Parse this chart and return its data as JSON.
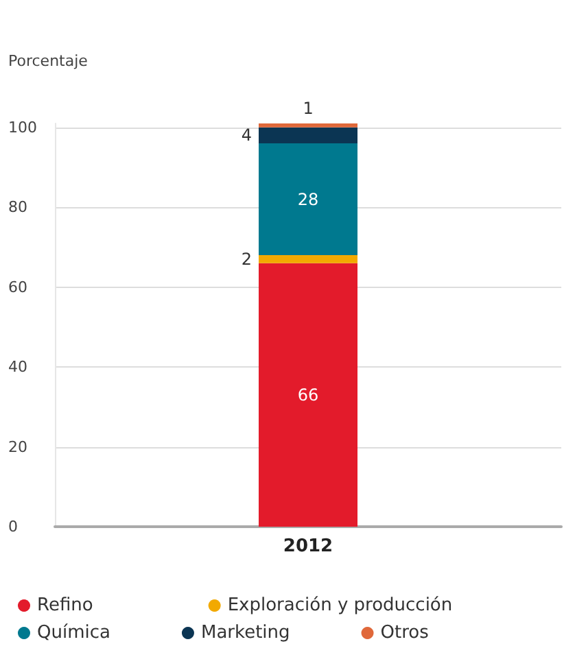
{
  "chart_data": {
    "type": "bar",
    "stacked": true,
    "ylabel": "Porcentaje",
    "categories": [
      "2012"
    ],
    "series": [
      {
        "name": "Refino",
        "color": "#e31b2b",
        "values": [
          66
        ]
      },
      {
        "name": "Exploración y producción",
        "color": "#f2a900",
        "values": [
          2
        ]
      },
      {
        "name": "Química",
        "color": "#00798f",
        "values": [
          28
        ]
      },
      {
        "name": "Marketing",
        "color": "#0b3553",
        "values": [
          4
        ]
      },
      {
        "name": "Otros",
        "color": "#e0683a",
        "values": [
          1
        ]
      }
    ],
    "ylim": [
      0,
      101
    ],
    "yticks": [
      0,
      20,
      40,
      60,
      80,
      100
    ],
    "grid": "y",
    "legend": "bottom",
    "marker": "circle",
    "data_labels": true
  }
}
